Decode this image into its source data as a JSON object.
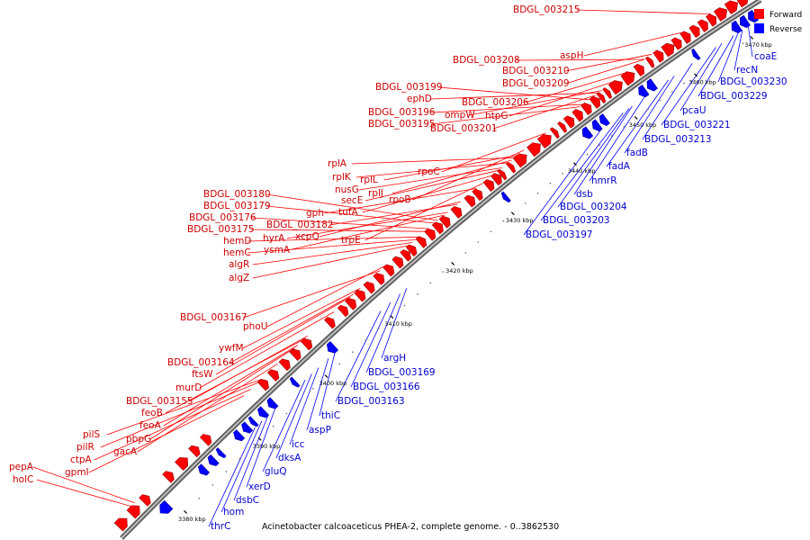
{
  "caption": "Acinetobacter calcoaceticus PHEA-2, complete genome. - 0..3862530",
  "legend": [
    {
      "label": "Forward",
      "color": "#ff0000"
    },
    {
      "label": "Reverse",
      "color": "#0000ff"
    }
  ],
  "colors": {
    "forward": "#ff0000",
    "forward_label": "#cc0000",
    "reverse": "#0000ff",
    "reverse_label": "#0000cc",
    "backbone": "#808080"
  },
  "ticks": [
    "3380 kbp",
    "3390 kbp",
    "3400 kbp",
    "3410 kbp",
    "3420 kbp",
    "3430 kbp",
    "3440 kbp",
    "3450 kbp",
    "3460 kbp",
    "3470 kbp"
  ],
  "forward_genes": [
    "BDGL_003215",
    "aspH",
    "BDGL_003208",
    "BDGL_003210",
    "BDGL_003209",
    "BDGL_003199",
    "ephD",
    "BDGL_003206",
    "ompW",
    "BDGL_003196",
    "htpG",
    "BDGL_003195",
    "BDGL_003201",
    "rplA",
    "rplK",
    "rplL",
    "nusG",
    "rpoC",
    "secE",
    "rplJ",
    "rpoB",
    "tufA",
    "BDGL_003180",
    "BDGL_003179",
    "gph",
    "BDGL_003176",
    "BDGL_003182",
    "BDGL_003175",
    "hyrA",
    "xcpQ",
    "hemD",
    "ysmA",
    "trpE",
    "hemC",
    "algR",
    "algZ",
    "BDGL_003167",
    "phoU",
    "ywfM",
    "BDGL_003164",
    "ftsW",
    "murD",
    "BDGL_003155",
    "feoB",
    "feoA",
    "pbpG",
    "pilS",
    "gacA",
    "pilR",
    "ctpA",
    "gpmI",
    "pepA",
    "holC"
  ],
  "reverse_genes": [
    "coaE",
    "recN",
    "BDGL_003230",
    "BDGL_003229",
    "pcaU",
    "BDGL_003221",
    "BDGL_003213",
    "fadB",
    "fadA",
    "hmrR",
    "dsb",
    "BDGL_003204",
    "BDGL_003203",
    "BDGL_003197",
    "argH",
    "BDGL_003169",
    "BDGL_003166",
    "BDGL_003163",
    "thiC",
    "aspP",
    "icc",
    "dksA",
    "gluQ",
    "xerD",
    "dsbC",
    "hom",
    "thrC"
  ]
}
